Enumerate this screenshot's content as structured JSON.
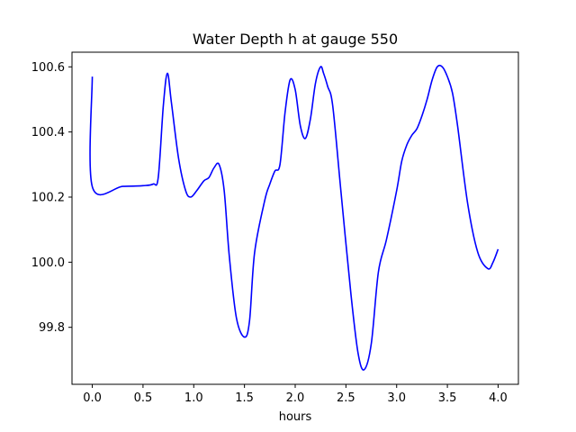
{
  "chart_data": {
    "type": "line",
    "title": "Water Depth h at gauge 550",
    "xlabel": "hours",
    "ylabel": "",
    "xlim": [
      -0.2,
      4.2
    ],
    "ylim": [
      99.625,
      100.645
    ],
    "x_ticks": [
      0.0,
      0.5,
      1.0,
      1.5,
      2.0,
      2.5,
      3.0,
      3.5,
      4.0
    ],
    "x_tick_labels": [
      "0.0",
      "0.5",
      "1.0",
      "1.5",
      "2.0",
      "2.5",
      "3.0",
      "3.5",
      "4.0"
    ],
    "y_ticks": [
      99.8,
      100.0,
      100.2,
      100.4,
      100.6
    ],
    "y_tick_labels": [
      "99.8",
      "100.0",
      "100.2",
      "100.4",
      "100.6"
    ],
    "grid": false,
    "legend": "none",
    "series": [
      {
        "color": "#0000ff",
        "x": [
          0.0,
          0.0,
          0.3,
          0.5,
          0.6,
          0.65,
          0.7,
          0.74,
          0.78,
          0.85,
          0.92,
          0.97,
          1.03,
          1.1,
          1.15,
          1.2,
          1.25,
          1.3,
          1.35,
          1.42,
          1.5,
          1.55,
          1.6,
          1.7,
          1.75,
          1.8,
          1.85,
          1.9,
          1.95,
          2.0,
          2.05,
          2.1,
          2.15,
          2.2,
          2.25,
          2.28,
          2.32,
          2.37,
          2.45,
          2.55,
          2.62,
          2.68,
          2.75,
          2.82,
          2.9,
          3.0,
          3.05,
          3.1,
          3.15,
          3.2,
          3.25,
          3.3,
          3.35,
          3.4,
          3.45,
          3.5,
          3.55,
          3.6,
          3.7,
          3.8,
          3.9,
          3.95,
          4.0
        ],
        "y": [
          100.57,
          100.232,
          100.233,
          100.235,
          100.24,
          100.26,
          100.48,
          100.58,
          100.49,
          100.32,
          100.22,
          100.2,
          100.22,
          100.25,
          100.26,
          100.29,
          100.3,
          100.22,
          100.02,
          99.83,
          99.77,
          99.82,
          100.03,
          100.19,
          100.24,
          100.28,
          100.3,
          100.46,
          100.56,
          100.53,
          100.42,
          100.38,
          100.44,
          100.55,
          100.6,
          100.58,
          100.54,
          100.48,
          100.22,
          99.9,
          99.72,
          99.67,
          99.75,
          99.97,
          100.07,
          100.22,
          100.31,
          100.36,
          100.39,
          100.41,
          100.45,
          100.5,
          100.56,
          100.6,
          100.6,
          100.57,
          100.52,
          100.42,
          100.18,
          100.03,
          99.98,
          100.0,
          100.04
        ]
      }
    ]
  }
}
